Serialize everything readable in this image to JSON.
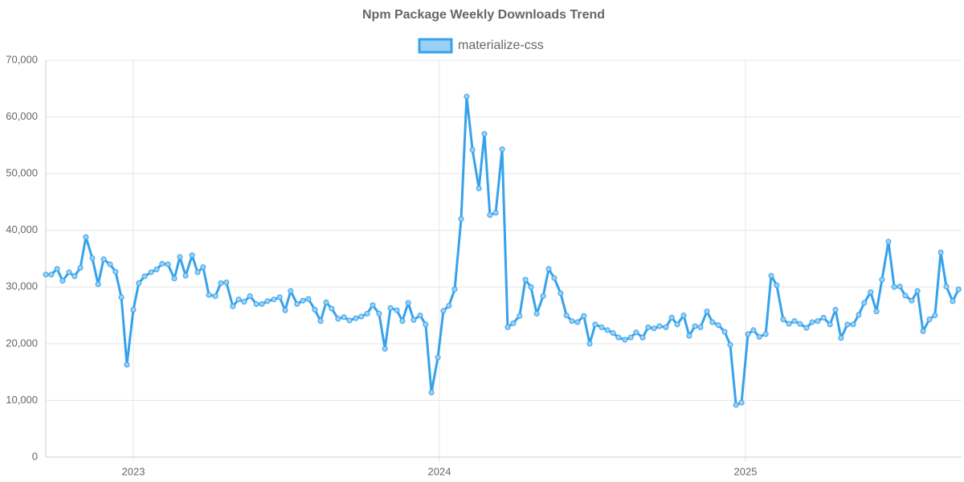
{
  "chart_data": {
    "type": "line",
    "title": "Npm Package Weekly Downloads Trend",
    "legend": "top",
    "grid": true,
    "xlim": [
      2022.714,
      2025.706
    ],
    "xticks": [
      2023,
      2024,
      2025
    ],
    "ylim": [
      0,
      70000
    ],
    "yticks": [
      0,
      {
        "value": 10000,
        "label": "10,000"
      },
      {
        "value": 20000,
        "label": "20,000"
      },
      {
        "value": 30000,
        "label": "30,000"
      },
      {
        "value": 40000,
        "label": "40,000"
      },
      {
        "value": 50000,
        "label": "50,000"
      },
      {
        "value": 60000,
        "label": "60,000"
      },
      {
        "value": 70000,
        "label": "70,000"
      }
    ],
    "x": [
      2022.714,
      2022.732,
      2022.751,
      2022.769,
      2022.79,
      2022.808,
      2022.827,
      2022.845,
      2022.866,
      2022.885,
      2022.903,
      2022.924,
      2022.942,
      2022.961,
      2022.979,
      2023.0,
      2023.018,
      2023.037,
      2023.058,
      2023.076,
      2023.094,
      2023.113,
      2023.134,
      2023.152,
      2023.171,
      2023.192,
      2023.21,
      2023.228,
      2023.247,
      2023.268,
      2023.286,
      2023.304,
      2023.325,
      2023.344,
      2023.362,
      2023.381,
      2023.402,
      2023.42,
      2023.438,
      2023.459,
      2023.478,
      2023.496,
      2023.514,
      2023.535,
      2023.554,
      2023.572,
      2023.593,
      2023.612,
      2023.63,
      2023.648,
      2023.669,
      2023.688,
      2023.706,
      2023.727,
      2023.745,
      2023.764,
      2023.782,
      2023.803,
      2023.822,
      2023.84,
      2023.861,
      2023.879,
      2023.898,
      2023.916,
      2023.937,
      2023.955,
      2023.974,
      2023.995,
      2024.013,
      2024.031,
      2024.05,
      2024.071,
      2024.089,
      2024.108,
      2024.129,
      2024.147,
      2024.165,
      2024.184,
      2024.205,
      2024.223,
      2024.241,
      2024.262,
      2024.281,
      2024.299,
      2024.318,
      2024.339,
      2024.357,
      2024.375,
      2024.396,
      2024.415,
      2024.433,
      2024.451,
      2024.472,
      2024.491,
      2024.509,
      2024.53,
      2024.549,
      2024.567,
      2024.585,
      2024.606,
      2024.625,
      2024.643,
      2024.664,
      2024.682,
      2024.701,
      2024.719,
      2024.74,
      2024.759,
      2024.777,
      2024.798,
      2024.816,
      2024.835,
      2024.853,
      2024.874,
      2024.892,
      2024.911,
      2024.932,
      2024.95,
      2024.969,
      2024.987,
      2025.008,
      2025.026,
      2025.045,
      2025.066,
      2025.084,
      2025.102,
      2025.123,
      2025.142,
      2025.16,
      2025.178,
      2025.199,
      2025.218,
      2025.236,
      2025.255,
      2025.276,
      2025.294,
      2025.312,
      2025.333,
      2025.352,
      2025.37,
      2025.388,
      2025.409,
      2025.428,
      2025.446,
      2025.467,
      2025.486,
      2025.504,
      2025.522,
      2025.543,
      2025.562,
      2025.58,
      2025.601,
      2025.619,
      2025.638,
      2025.656,
      2025.677,
      2025.696
    ],
    "series": [
      {
        "name": "materialize-css",
        "color": "#36a2eb",
        "fill": "#9ad0f5",
        "values": [
          32200,
          32200,
          33200,
          31100,
          32600,
          31900,
          33400,
          38800,
          35100,
          30500,
          34900,
          34000,
          32700,
          28200,
          16300,
          26000,
          30700,
          31900,
          32600,
          33100,
          34100,
          34000,
          31500,
          35300,
          32000,
          35600,
          32600,
          33500,
          28600,
          28400,
          30700,
          30800,
          26600,
          27800,
          27400,
          28400,
          27000,
          27000,
          27500,
          27800,
          28200,
          25900,
          29300,
          27000,
          27600,
          27900,
          26000,
          24000,
          27300,
          26200,
          24400,
          24700,
          24100,
          24500,
          24800,
          25300,
          26800,
          25300,
          19100,
          26300,
          25900,
          24000,
          27200,
          24200,
          25000,
          23400,
          11400,
          17600,
          25800,
          26700,
          29600,
          42000,
          63600,
          54200,
          47400,
          57000,
          42700,
          43100,
          54300,
          22900,
          23600,
          24900,
          31300,
          30000,
          25300,
          28400,
          33200,
          31600,
          28900,
          25000,
          24000,
          23800,
          24900,
          20000,
          23400,
          22900,
          22400,
          21900,
          21100,
          20700,
          21100,
          22000,
          21100,
          22900,
          22700,
          23100,
          22900,
          24600,
          23400,
          25000,
          21400,
          23100,
          22900,
          25700,
          23800,
          23300,
          22100,
          19800,
          9200,
          9600,
          21700,
          22400,
          21200,
          21700,
          32000,
          30300,
          24300,
          23500,
          24000,
          23500,
          22800,
          23800,
          24000,
          24600,
          23400,
          26000,
          21000,
          23400,
          23400,
          25100,
          27200,
          29100,
          25700,
          31300,
          38000,
          30000,
          30100,
          28500,
          27600,
          29300,
          22200,
          24300,
          25000,
          36100,
          30100,
          27500,
          29600
        ]
      }
    ]
  }
}
